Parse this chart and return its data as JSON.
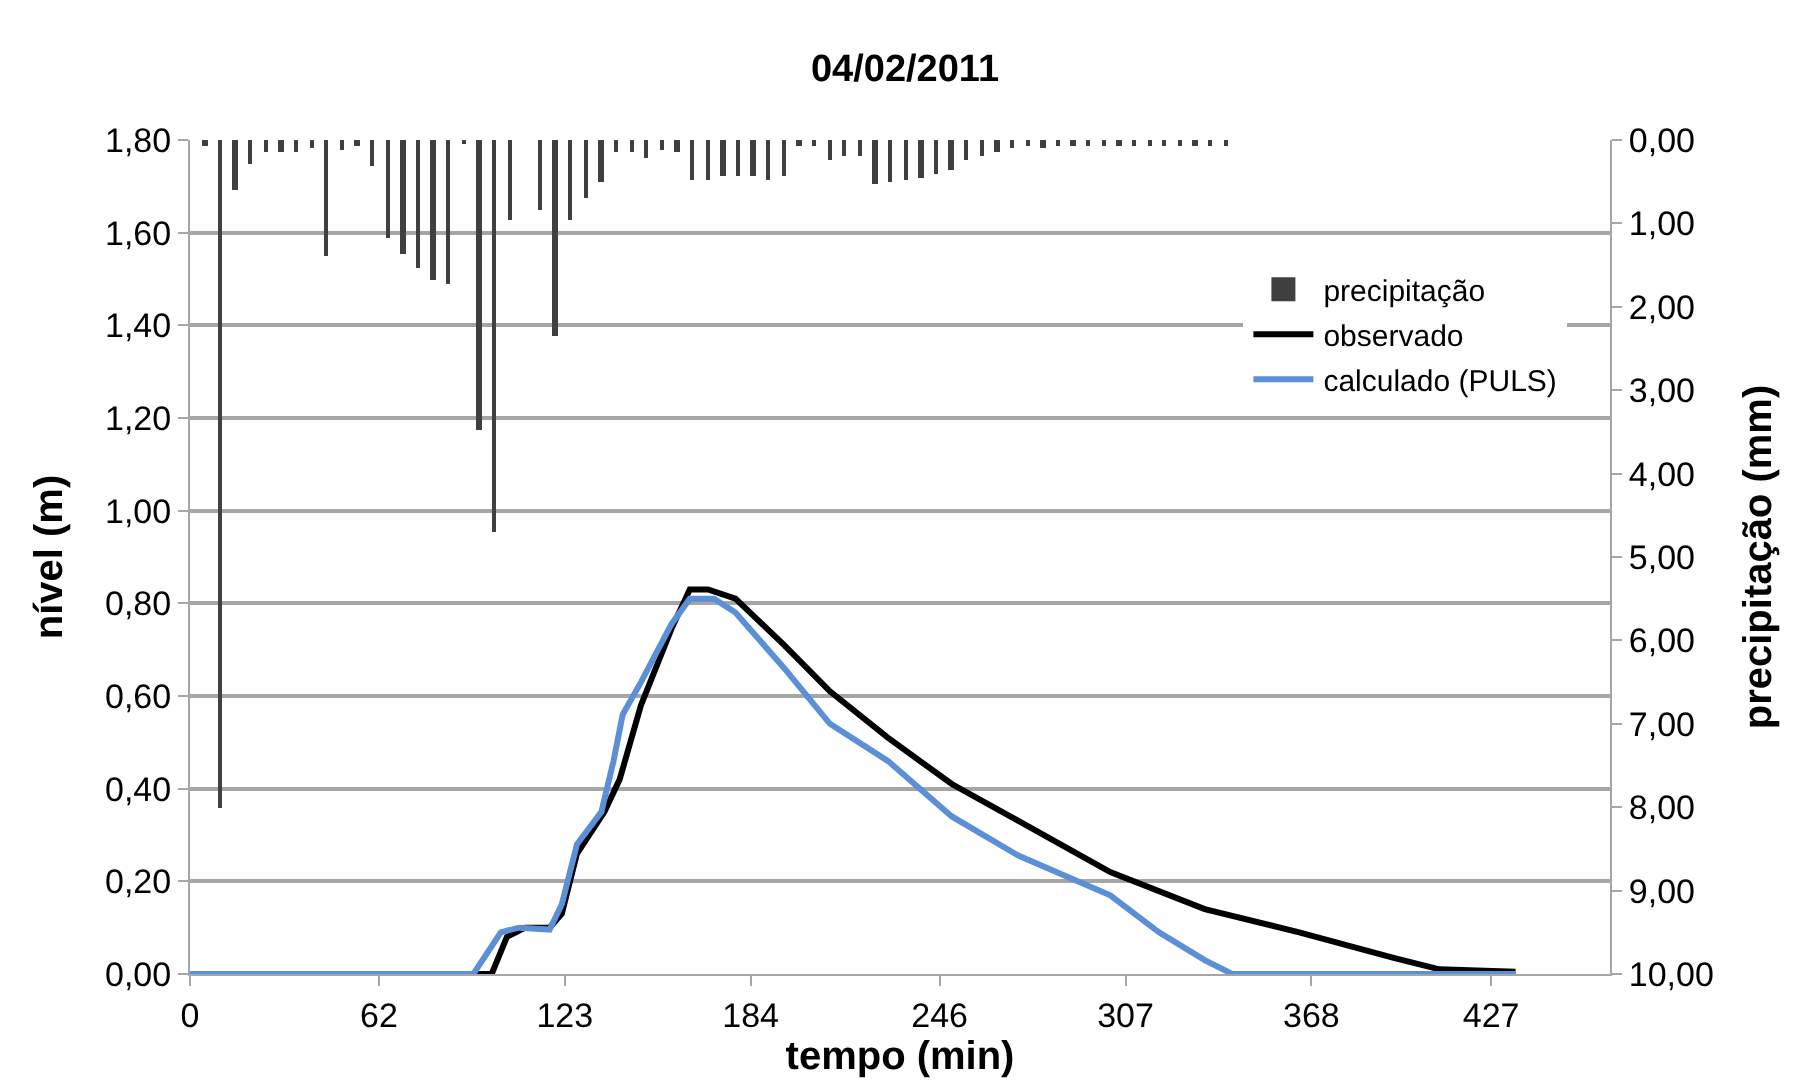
{
  "chart_data": {
    "type": "line",
    "title": "04/02/2011",
    "xlabel": "tempo (min)",
    "ylabel": "nível (m)",
    "y2label": "precipitação (mm)",
    "xlim": [
      0,
      466
    ],
    "xticks": [
      0,
      62,
      123,
      184,
      246,
      307,
      368,
      427
    ],
    "ylim": [
      0,
      1.8
    ],
    "yticks": [
      {
        "value": 0,
        "label": "0,00"
      },
      {
        "value": 0.2,
        "label": "0,20"
      },
      {
        "value": 0.4,
        "label": "0,40"
      },
      {
        "value": 0.6,
        "label": "0,60"
      },
      {
        "value": 0.8,
        "label": "0,80"
      },
      {
        "value": 1.0,
        "label": "1,00"
      },
      {
        "value": 1.2,
        "label": "1,20"
      },
      {
        "value": 1.4,
        "label": "1,40"
      },
      {
        "value": 1.6,
        "label": "1,60"
      },
      {
        "value": 1.8,
        "label": "1,80"
      }
    ],
    "y2lim": [
      10,
      0
    ],
    "y2ticks": [
      {
        "value": 0,
        "label": "0,00"
      },
      {
        "value": 1,
        "label": "1,00"
      },
      {
        "value": 2,
        "label": "2,00"
      },
      {
        "value": 3,
        "label": "3,00"
      },
      {
        "value": 4,
        "label": "4,00"
      },
      {
        "value": 5,
        "label": "5,00"
      },
      {
        "value": 6,
        "label": "6,00"
      },
      {
        "value": 7,
        "label": "7,00"
      },
      {
        "value": 8,
        "label": "8,00"
      },
      {
        "value": 9,
        "label": "9,00"
      },
      {
        "value": 10,
        "label": "10,00"
      }
    ],
    "grid": "y",
    "legend": "top right",
    "marker": "none",
    "line_style": "solid",
    "series": [
      {
        "name": "precipitação",
        "type": "bar",
        "axis": "y2",
        "color": "#404040",
        "x": [
          5,
          10,
          15,
          20,
          25,
          30,
          35,
          40,
          45,
          50,
          55,
          60,
          65,
          70,
          75,
          80,
          85,
          90,
          95,
          100,
          105,
          115,
          120,
          125,
          130,
          135,
          140,
          145,
          150,
          155,
          160,
          165,
          170,
          175,
          180,
          185,
          190,
          195,
          200,
          205,
          210,
          215,
          220,
          225,
          230,
          235,
          240,
          245,
          250,
          255,
          260,
          265,
          270,
          275,
          280,
          285,
          290,
          295,
          300,
          305,
          310,
          315,
          320,
          325,
          330,
          335,
          340
        ],
        "values": [
          0.07,
          8.0,
          0.61,
          0.29,
          0.15,
          0.15,
          0.15,
          0.09,
          1.39,
          0.13,
          0.07,
          0.32,
          1.17,
          1.36,
          1.53,
          1.68,
          1.72,
          0.04,
          3.47,
          4.7,
          0.95,
          0.84,
          2.35,
          0.97,
          0.69,
          0.5,
          0.15,
          0.15,
          0.21,
          0.11,
          0.15,
          0.47,
          0.47,
          0.42,
          0.42,
          0.42,
          0.47,
          0.42,
          0.07,
          0.07,
          0.24,
          0.2,
          0.2,
          0.53,
          0.5,
          0.48,
          0.45,
          0.4,
          0.36,
          0.24,
          0.2,
          0.15,
          0.1,
          0.06,
          0.1,
          0.06,
          0.06,
          0.06,
          0.06,
          0.06,
          0.06,
          0.06,
          0.06,
          0.06,
          0.06,
          0.06,
          0.06
        ]
      },
      {
        "name": "observado",
        "color": "#000000",
        "x": [
          0,
          99,
          104,
          110,
          118,
          122,
          127,
          136,
          141,
          148,
          158,
          164,
          170,
          179,
          195,
          210,
          229,
          250,
          272,
          302,
          333,
          364,
          395,
          410,
          435
        ],
        "values": [
          0,
          0,
          0.08,
          0.1,
          0.1,
          0.13,
          0.26,
          0.35,
          0.42,
          0.58,
          0.745,
          0.83,
          0.83,
          0.81,
          0.71,
          0.61,
          0.51,
          0.41,
          0.33,
          0.22,
          0.14,
          0.09,
          0.035,
          0.01,
          0.005
        ]
      },
      {
        "name": "calculado (PULS)",
        "color": "#5b8fd6",
        "x": [
          0,
          93,
          102,
          108,
          118,
          122,
          127,
          135,
          139,
          142,
          148,
          158,
          164,
          172,
          179,
          195,
          210,
          229,
          250,
          272,
          302,
          318,
          333,
          342,
          435
        ],
        "values": [
          0,
          0,
          0.09,
          0.1,
          0.096,
          0.15,
          0.28,
          0.35,
          0.46,
          0.56,
          0.63,
          0.755,
          0.81,
          0.81,
          0.78,
          0.66,
          0.54,
          0.46,
          0.34,
          0.255,
          0.17,
          0.09,
          0.03,
          0,
          0
        ]
      }
    ]
  }
}
